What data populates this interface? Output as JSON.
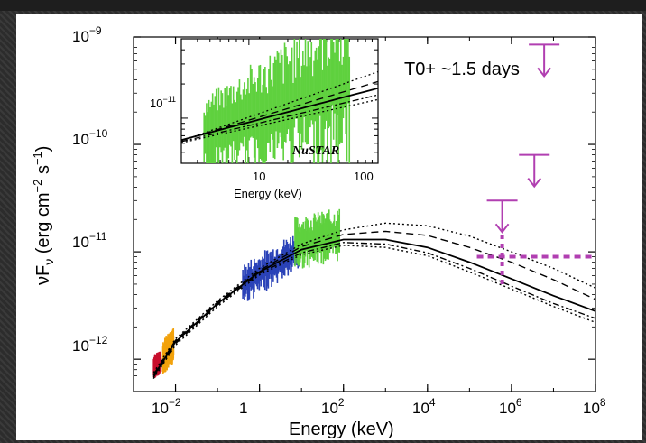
{
  "chart_data": {
    "type": "line",
    "xlabel": "Energy (keV)",
    "ylabel": "νFν (erg cm⁻² s⁻¹)",
    "x_scale": "log",
    "y_scale": "log",
    "xlim": [
      0.001,
      100000000
    ],
    "ylim": [
      5e-13,
      1e-09
    ],
    "x_ticks": [
      0.01,
      1,
      100,
      10000,
      1000000,
      100000000
    ],
    "x_tick_labels": [
      "10⁻²",
      "1",
      "10²",
      "10⁴",
      "10⁶",
      "10⁸"
    ],
    "y_ticks": [
      1e-12,
      1e-11,
      1e-10,
      1e-09
    ],
    "y_tick_labels": [
      "10⁻¹²",
      "10⁻¹¹",
      "10⁻¹⁰",
      "10⁻⁹"
    ],
    "annotation": "T0+ ~1.5 days",
    "series": [
      {
        "style": "solid",
        "color": "#000000",
        "x": [
          0.003,
          0.01,
          0.1,
          1,
          10,
          100,
          1000,
          10000,
          100000,
          1000000,
          10000000,
          100000000
        ],
        "y": [
          7e-13,
          1.45e-12,
          3.3e-12,
          6.5e-12,
          1.05e-11,
          1.3e-11,
          1.3e-11,
          1.1e-11,
          8e-12,
          5.6e-12,
          3.9e-12,
          2.8e-12
        ]
      },
      {
        "style": "dashed",
        "color": "#000000",
        "x": [
          0.003,
          0.01,
          0.1,
          1,
          10,
          100,
          1000,
          10000,
          100000,
          1000000,
          10000000,
          100000000
        ],
        "y": [
          7.2e-13,
          1.5e-12,
          3.4e-12,
          6.7e-12,
          1.12e-11,
          1.45e-11,
          1.55e-11,
          1.42e-11,
          1.1e-11,
          8e-12,
          5.5e-12,
          3.6e-12
        ]
      },
      {
        "style": "dotted",
        "color": "#000000",
        "x": [
          0.003,
          0.01,
          0.1,
          1,
          10,
          100,
          1000,
          10000,
          100000,
          1000000,
          10000000,
          100000000
        ],
        "y": [
          7.5e-13,
          1.55e-12,
          3.5e-12,
          7e-12,
          1.18e-11,
          1.6e-11,
          1.85e-11,
          1.75e-11,
          1.4e-11,
          1e-11,
          7e-12,
          4.6e-12
        ]
      },
      {
        "style": "dashdot",
        "color": "#000000",
        "x": [
          0.003,
          0.01,
          0.1,
          1,
          10,
          100,
          1000,
          10000,
          100000,
          1000000,
          10000000,
          100000000
        ],
        "y": [
          6.8e-13,
          1.4e-12,
          3.2e-12,
          6.3e-12,
          9.8e-12,
          1.22e-11,
          1.18e-11,
          9.8e-12,
          7e-12,
          4.8e-12,
          3.3e-12,
          2.4e-12
        ]
      },
      {
        "style": "dotted",
        "color": "#000000",
        "x": [
          0.003,
          0.01,
          0.1,
          1,
          10,
          100,
          1000,
          10000,
          100000,
          1000000,
          10000000,
          100000000
        ],
        "y": [
          6.6e-13,
          1.35e-12,
          3.1e-12,
          6.1e-12,
          9.4e-12,
          1.15e-11,
          1.1e-11,
          9.2e-12,
          6.5e-12,
          4.5e-12,
          3.1e-12,
          2.2e-12
        ]
      }
    ],
    "data_bands": [
      {
        "color": "#c8102e",
        "x_range": [
          0.003,
          0.0045
        ],
        "y_center": [
          8.5e-13,
          9.5e-13
        ],
        "scatter": 0.08
      },
      {
        "color": "#f2a20c",
        "x_range": [
          0.005,
          0.009
        ],
        "y_center": [
          1.05e-12,
          1.35e-12
        ],
        "scatter": 0.12
      },
      {
        "color": "#2b43b8",
        "x_range": [
          0.4,
          9
        ],
        "y_center": [
          5e-12,
          1.05e-11
        ],
        "scatter": 0.14
      },
      {
        "color": "#5fd13e",
        "x_range": [
          7,
          80
        ],
        "y_center": [
          1.2e-11,
          1.45e-11
        ],
        "scatter": 0.18
      }
    ],
    "upper_limits": [
      {
        "x": 6000000,
        "y": 8.5e-10,
        "color": "#b13fb1"
      },
      {
        "x": 600000,
        "y": 3e-11,
        "color": "#b13fb1"
      },
      {
        "x": 3500000,
        "y": 8e-11,
        "color": "#b13fb1"
      }
    ],
    "purple_flux_limit": {
      "color": "#b13fb1",
      "x_range": [
        150000,
        100000000
      ],
      "y": 9e-12,
      "x_marker": 600000,
      "y_marker_range": [
        5e-12,
        1.6e-11
      ]
    },
    "inset": {
      "label": "NuSTAR",
      "xlabel": "Energy (keV)",
      "x_ticks": [
        10,
        100
      ],
      "x_tick_labels": [
        "10",
        "100"
      ],
      "y_tick_labels": [
        "10⁻¹¹"
      ],
      "xlim": [
        3,
        100
      ],
      "ylim": [
        4e-12,
        5e-11
      ]
    }
  }
}
